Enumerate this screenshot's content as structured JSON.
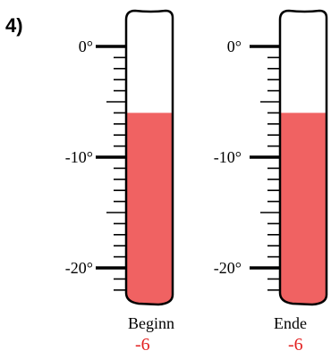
{
  "problem_number": "4)",
  "colors": {
    "liquid": "#f06262",
    "outline": "#000000",
    "value_text": "#e32222"
  },
  "scale": {
    "min": -22,
    "max": 0,
    "major_labels": [
      "0°",
      "-10°",
      "-20°"
    ],
    "major_values": [
      0,
      -10,
      -20
    ],
    "minor_step": 1
  },
  "thermometers": [
    {
      "caption": "Beginn",
      "value": -6,
      "value_label": "-6"
    },
    {
      "caption": "Ende",
      "value": -6,
      "value_label": "-6"
    }
  ]
}
